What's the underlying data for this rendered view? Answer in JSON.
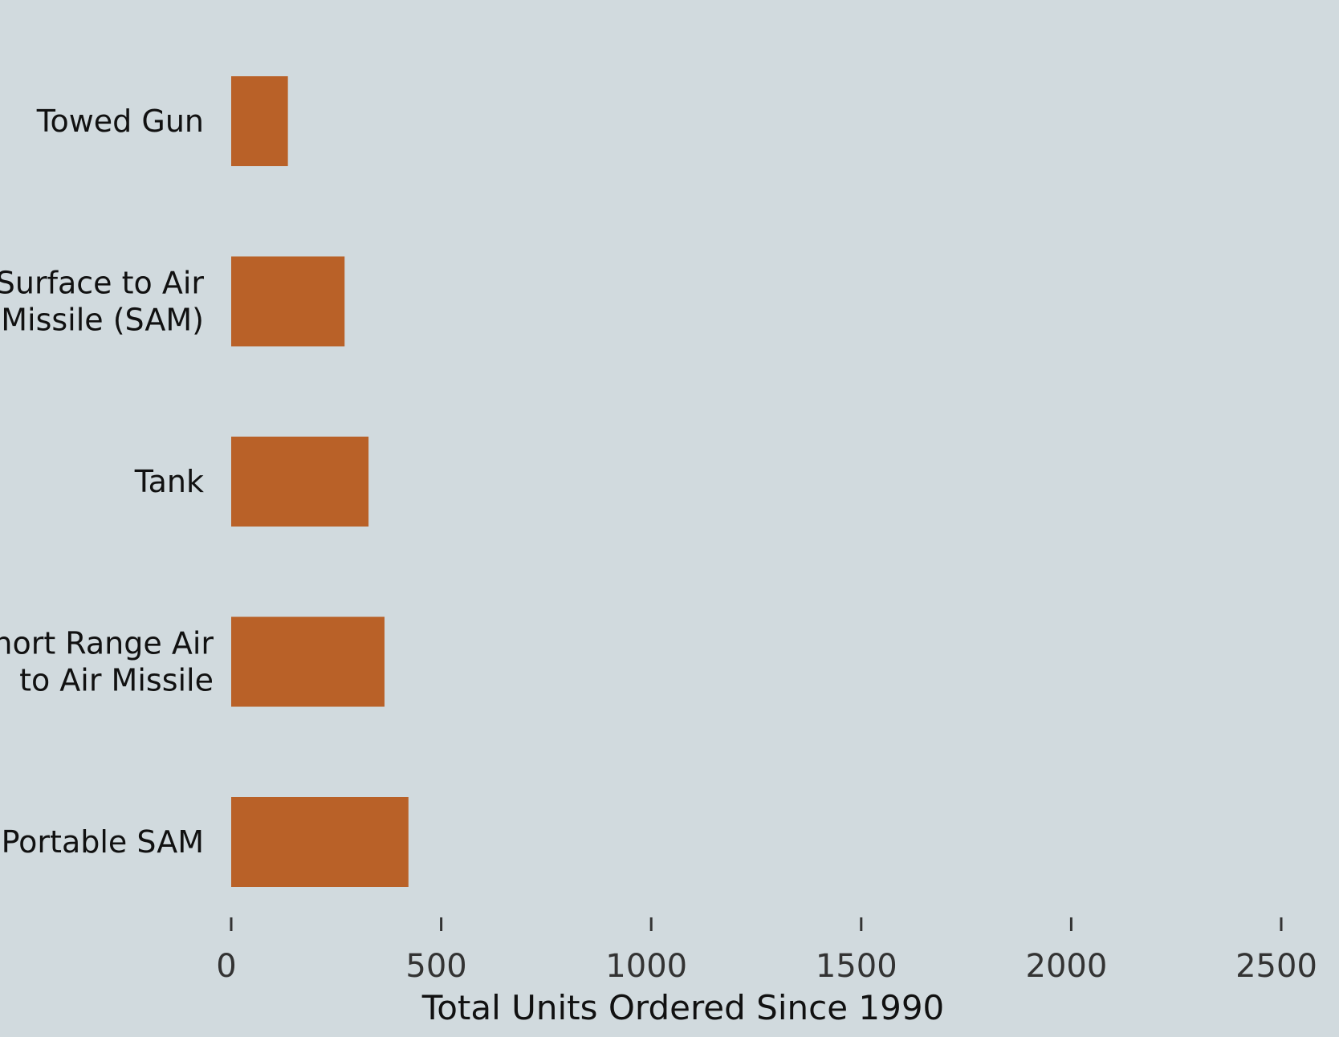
{
  "colors": {
    "background": "#d1dade",
    "bar": "#b96128",
    "text": "#111111",
    "tick": "#333333"
  },
  "chart_data": {
    "type": "bar",
    "orientation": "horizontal",
    "categories": [
      "Towed Gun",
      "Surface to Air Missile (SAM)",
      "Tank",
      "Short Range Air to Air Missile",
      "Portable SAM"
    ],
    "category_label_lines": [
      [
        "Towed Gun"
      ],
      [
        "Surface to Air",
        "Missile (SAM)"
      ],
      [
        "Tank"
      ],
      [
        "Short Range Air",
        "to Air Missile"
      ],
      [
        "Portable SAM"
      ]
    ],
    "values": [
      135,
      270,
      327,
      365,
      422
    ],
    "xlabel": "Total Units Ordered Since 1990",
    "ylabel": "",
    "xlim": [
      0,
      2500
    ],
    "xticks": [
      0,
      500,
      1000,
      1500,
      2000,
      2500
    ],
    "xtick_labels": [
      "0",
      "500",
      "1000",
      "1500",
      "2000",
      "2500"
    ],
    "grid": false,
    "legend": "none"
  }
}
